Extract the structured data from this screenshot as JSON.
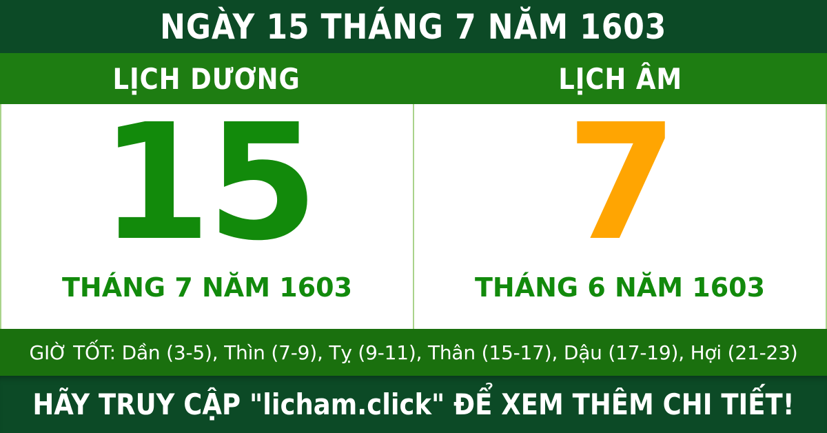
{
  "colors": {
    "dark_green": "#0C4A26",
    "header_bar_green": "#1E7D12",
    "good_hours_bar_green": "#1A700E",
    "day_number_green": "#128A0B",
    "day_number_orange": "#FFA502",
    "divider_light_green": "#A9D38B",
    "text_white": "#FFFFFF"
  },
  "header": {
    "title": "NGÀY 15 THÁNG 7 NĂM 1603"
  },
  "calendar": {
    "solar": {
      "heading": "LỊCH DƯƠNG",
      "day": "15",
      "month_year": "THÁNG 7 NĂM 1603"
    },
    "lunar": {
      "heading": "LỊCH ÂM",
      "day": "7",
      "month_year": "THÁNG 6 NĂM 1603"
    }
  },
  "good_hours": {
    "text": "GIỜ TỐT: Dần (3-5), Thìn (7-9), Tỵ (9-11), Thân (15-17), Dậu (17-19), Hợi (21-23)"
  },
  "footer": {
    "text": "HÃY TRUY CẬP \"licham.click\" ĐỂ XEM THÊM CHI TIẾT!"
  }
}
